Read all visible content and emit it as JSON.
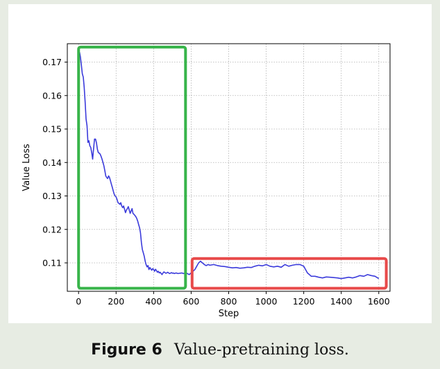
{
  "caption": {
    "figure_label": "Figure 6",
    "text": "Value-pretraining loss."
  },
  "chart_data": {
    "type": "line",
    "title": "",
    "xlabel": "Step",
    "ylabel": "Value Loss",
    "xlim": [
      -60,
      1660
    ],
    "ylim": [
      0.1015,
      0.1755
    ],
    "xticks": [
      0,
      200,
      400,
      600,
      800,
      1000,
      1200,
      1400,
      1600
    ],
    "yticks": [
      0.11,
      0.12,
      0.13,
      0.14,
      0.15,
      0.16,
      0.17
    ],
    "grid": true,
    "line_color": "#3b3bdb",
    "series": [
      {
        "x": [
          5,
          10,
          15,
          20,
          25,
          30,
          35,
          40,
          45,
          50,
          55,
          60,
          65,
          70,
          75,
          80,
          85,
          90,
          95,
          100,
          105,
          110,
          115,
          120,
          125,
          130,
          135,
          140,
          145,
          150,
          155,
          160,
          165,
          170,
          175,
          180,
          185,
          190,
          195,
          200,
          205,
          210,
          215,
          220,
          225,
          230,
          235,
          240,
          245,
          250,
          255,
          260,
          265,
          270,
          275,
          280,
          285,
          290,
          295,
          300,
          305,
          310,
          315,
          320,
          325,
          330,
          335,
          340,
          345,
          350,
          355,
          360,
          365,
          370,
          375,
          380,
          385,
          390,
          395,
          400,
          405,
          410,
          415,
          420,
          425,
          430,
          435,
          440,
          445,
          450,
          455,
          460,
          465,
          470,
          475,
          480,
          485,
          490,
          495,
          500,
          505,
          510,
          520,
          530,
          540,
          550,
          560,
          570,
          580,
          590,
          600,
          610,
          620,
          630,
          640,
          650,
          660,
          670,
          680,
          690,
          700,
          720,
          740,
          760,
          780,
          800,
          820,
          840,
          860,
          880,
          900,
          920,
          940,
          960,
          980,
          1000,
          1020,
          1040,
          1060,
          1080,
          1100,
          1120,
          1140,
          1160,
          1180,
          1200,
          1210,
          1220,
          1230,
          1240,
          1260,
          1280,
          1300,
          1320,
          1340,
          1360,
          1380,
          1400,
          1420,
          1440,
          1460,
          1480,
          1500,
          1520,
          1540,
          1560,
          1580,
          1600
        ],
        "values": [
          0.173,
          0.1715,
          0.169,
          0.1665,
          0.1655,
          0.1625,
          0.158,
          0.153,
          0.151,
          0.146,
          0.1465,
          0.145,
          0.1445,
          0.143,
          0.141,
          0.144,
          0.147,
          0.147,
          0.146,
          0.144,
          0.143,
          0.1428,
          0.1425,
          0.1418,
          0.141,
          0.14,
          0.139,
          0.1375,
          0.136,
          0.1355,
          0.1352,
          0.136,
          0.1355,
          0.1345,
          0.1335,
          0.1325,
          0.1315,
          0.1305,
          0.13,
          0.1297,
          0.129,
          0.128,
          0.1278,
          0.1275,
          0.128,
          0.127,
          0.1265,
          0.127,
          0.126,
          0.125,
          0.1258,
          0.1262,
          0.1268,
          0.1258,
          0.1248,
          0.1255,
          0.1262,
          0.1248,
          0.1245,
          0.1242,
          0.1238,
          0.1233,
          0.1225,
          0.1215,
          0.1205,
          0.119,
          0.116,
          0.114,
          0.113,
          0.112,
          0.1105,
          0.1095,
          0.1088,
          0.1092,
          0.108,
          0.1086,
          0.1082,
          0.1078,
          0.1083,
          0.108,
          0.1075,
          0.1081,
          0.1077,
          0.1072,
          0.1075,
          0.107,
          0.1072,
          0.1068,
          0.1065,
          0.107,
          0.1073,
          0.1071,
          0.1069,
          0.107,
          0.1072,
          0.107,
          0.1068,
          0.1069,
          0.1071,
          0.1069,
          0.107,
          0.1068,
          0.107,
          0.1068,
          0.1069,
          0.107,
          0.1068,
          0.107,
          0.1068,
          0.1065,
          0.107,
          0.1075,
          0.108,
          0.109,
          0.11,
          0.1105,
          0.11,
          0.1095,
          0.1092,
          0.1095,
          0.1093,
          0.1095,
          0.1092,
          0.109,
          0.1089,
          0.1087,
          0.1085,
          0.1086,
          0.1084,
          0.1085,
          0.1087,
          0.1086,
          0.109,
          0.1093,
          0.1091,
          0.1095,
          0.109,
          0.1088,
          0.109,
          0.1087,
          0.1095,
          0.109,
          0.1093,
          0.1095,
          0.1095,
          0.109,
          0.108,
          0.107,
          0.1065,
          0.106,
          0.106,
          0.1057,
          0.1055,
          0.1058,
          0.1057,
          0.1056,
          0.1055,
          0.1053,
          0.1055,
          0.1057,
          0.1055,
          0.1058,
          0.1062,
          0.106,
          0.1065,
          0.1062,
          0.106,
          0.1053
        ]
      }
    ],
    "annotations": [
      {
        "kind": "highlight-box",
        "color": "#38b44a",
        "x_range": [
          0,
          570
        ],
        "y_range": [
          0.1024,
          0.1745
        ]
      },
      {
        "kind": "highlight-box",
        "color": "#e84a4a",
        "x_range": [
          605,
          1640
        ],
        "y_range": [
          0.1024,
          0.1113
        ]
      }
    ]
  }
}
